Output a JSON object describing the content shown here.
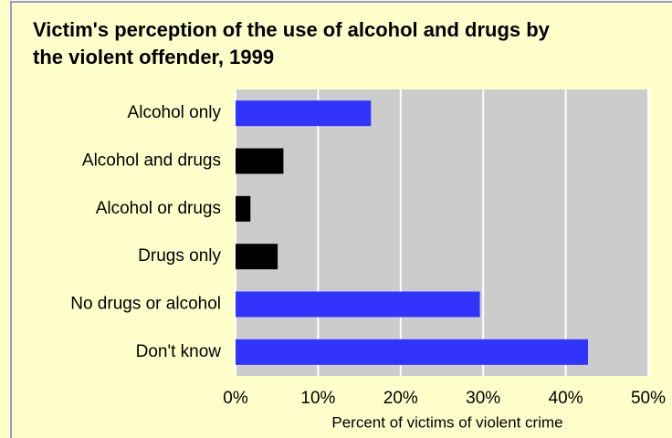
{
  "chart_data": {
    "type": "hbar",
    "title": "Victim's perception of the use of alcohol and drugs by the violent offender, 1999",
    "categories": [
      "Alcohol only",
      "Alcohol and drugs",
      "Alcohol or drugs",
      "Drugs only",
      "No drugs or alcohol",
      "Don't know"
    ],
    "values": [
      16.4,
      5.8,
      1.8,
      5.1,
      29.6,
      42.7
    ],
    "colors": [
      "#3333ff",
      "#000000",
      "#000000",
      "#000000",
      "#3333ff",
      "#3333ff"
    ],
    "xlabel": "Percent of victims of violent crime",
    "xlim": [
      0,
      50
    ],
    "xticks": [
      {
        "value": 0,
        "label": "0%"
      },
      {
        "value": 10,
        "label": "10%"
      },
      {
        "value": 20,
        "label": "20%"
      },
      {
        "value": 30,
        "label": "30%"
      },
      {
        "value": 40,
        "label": "40%"
      },
      {
        "value": 50,
        "label": "50%"
      }
    ],
    "grid": true
  }
}
